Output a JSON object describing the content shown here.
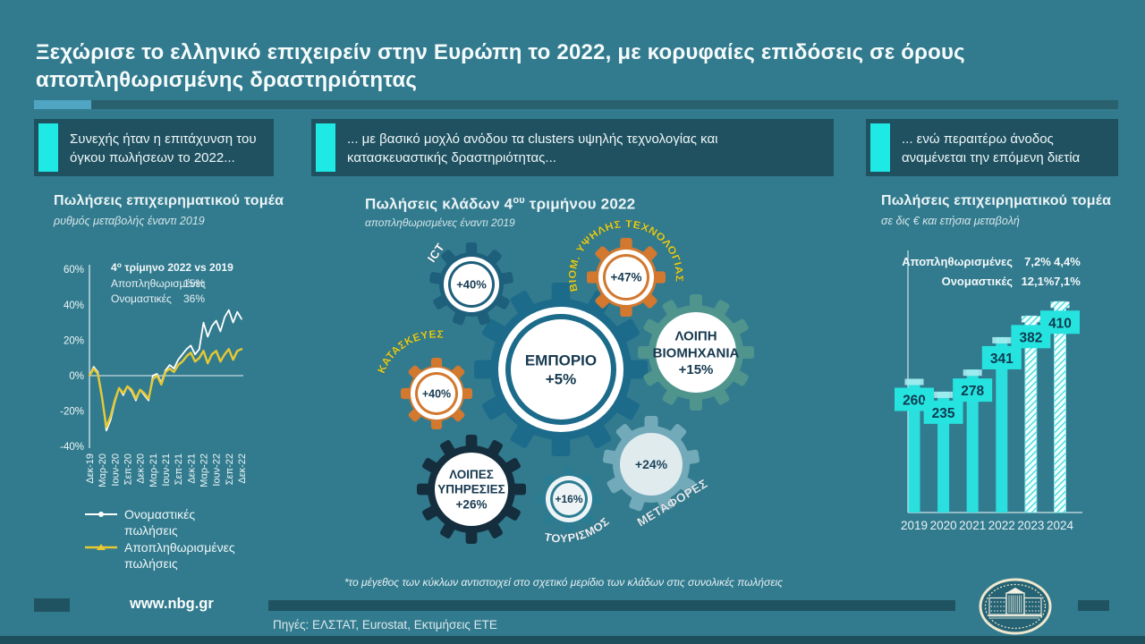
{
  "page": {
    "title": "Ξεχώρισε το ελληνικό επιχειρείν στην Ευρώπη το 2022, με κορυφαίες επιδόσεις σε όρους αποπληθωρισμένης δραστηριότητας",
    "website_link": "www.nbg.gr",
    "sources_line": "Πηγές: ΕΛΣΤΑΤ, Eurostat, Εκτιμήσεις ΕΤΕ",
    "logo_icon": "nbg-building-emblem",
    "background_color": "#327B8E"
  },
  "colors": {
    "accent_cyan": "#1FE9E5",
    "callout_bg": "#1F5160",
    "deco_light_blue": "#4FA5C2",
    "deco_dark": "#29616F",
    "line_nominal": "#FFFFFF",
    "line_deflated": "#E7C832",
    "bar_cyan": "#2BDFDF",
    "bar_label_bg": "#25E4E0",
    "navy_text": "#173A50",
    "gear_orange": "#D2782F",
    "gear_teal_main": "#1C6B8B",
    "gear_teal_dark": "#1E5F7B",
    "gear_sage": "#4F948D",
    "gear_navy": "#152E3E",
    "gear_teal_small": "#2A7D93",
    "gear_light_teal": "#7FB3C2",
    "yellow_label": "#E5CE1E"
  },
  "callouts": [
    {
      "text": "Συνεχής ήταν η επιτάχυνση του όγκου πωλήσεων το 2022..."
    },
    {
      "text": "... με βασικό μοχλό ανόδου τα clusters υψηλής τεχνολογίας και κατασκευαστικής δραστηριότητας..."
    },
    {
      "text": "... ενώ περαιτέρω άνοδος αναμένεται την επόμενη διετία"
    }
  ],
  "left_panel": {
    "title": "Πωλήσεις επιχειρηματικού τομέα",
    "subtitle": "ρυθμός μεταβολής έναντι 2019",
    "legend_items": [
      {
        "label": "Ονομαστικές πωλήσεις",
        "color": "#FFFFFF",
        "marker": "circle-marker-icon"
      },
      {
        "label": "Αποπληθωρισμένες πωλήσεις",
        "color": "#E7C832",
        "marker": "triangle-marker-icon"
      }
    ]
  },
  "center_panel": {
    "title_parts": {
      "prefix": "Πωλήσεις κλάδων 4",
      "sup": "ου",
      "suffix": " τριμήνου 2022"
    },
    "subtitle": "αποπληθωρισμένες έναντι 2019",
    "footnote": "*το μέγεθος των κύκλων αντιστοιχεί στο σχετικό μερίδιο των κλάδων στις συνολικές πωλήσεις"
  },
  "right_panel": {
    "title": "Πωλήσεις επιχειρηματικού τομέα",
    "subtitle": "σε δις € και ετήσια μεταβολή"
  },
  "chart_data": [
    {
      "type": "line",
      "panel": "left",
      "title": "Πωλήσεις επιχειρηματικού τομέα",
      "ylabel": "ρυθμός μεταβολής έναντι 2019 (%)",
      "ylim": [
        -40,
        60
      ],
      "y_ticks": [
        60,
        40,
        20,
        0,
        -20,
        -40
      ],
      "y_tick_labels": [
        "60%",
        "40%",
        "20%",
        "0%",
        "-20%",
        "-40%"
      ],
      "tick_labels": [
        "Δεκ-19",
        "Μαρ-20",
        "Ιουν-20",
        "Σεπ-20",
        "Δεκ-20",
        "Μαρ-21",
        "Ιουν-21",
        "Σεπ-21",
        "Δεκ-21",
        "Μαρ-22",
        "Ιουν-22",
        "Σεπ-22",
        "Δεκ-22"
      ],
      "points_per_tick": 3,
      "annotation": {
        "title_parts": {
          "prefix": "4",
          "sup": "ο",
          "suffix": " τρίμηνο 2022 vs 2019"
        },
        "rows": [
          {
            "label": "Αποπληθωρισμένες",
            "value": "15%"
          },
          {
            "label": "Ονομαστικές",
            "value": "36%"
          }
        ]
      },
      "series": [
        {
          "name": "Ονομαστικές πωλήσεις",
          "color": "#FFFFFF",
          "values": [
            0,
            5,
            2,
            -12,
            -31,
            -25,
            -15,
            -7,
            -11,
            -6,
            -9,
            -14,
            -8,
            -11,
            -14,
            0,
            1,
            -4,
            3,
            6,
            4,
            9,
            12,
            15,
            17,
            12,
            15,
            30,
            22,
            28,
            31,
            25,
            33,
            37,
            30,
            36,
            32
          ]
        },
        {
          "name": "Αποπληθωρισμένες πωλήσεις",
          "color": "#E7C832",
          "values": [
            0,
            4,
            1,
            -13,
            -29,
            -23,
            -14,
            -7,
            -10,
            -6,
            -8,
            -13,
            -8,
            -10,
            -13,
            -2,
            0,
            -5,
            2,
            4,
            2,
            6,
            8,
            11,
            13,
            8,
            10,
            14,
            7,
            12,
            14,
            8,
            12,
            15,
            9,
            14,
            15
          ]
        }
      ],
      "legend_position": "below"
    },
    {
      "type": "gears",
      "panel": "center",
      "note": "*το μέγεθος των κύκλων αντιστοιχεί στο σχετικό μερίδιο των κλάδων στις συνολικές πωλήσεις",
      "gears": [
        {
          "id": "trade",
          "label": "ΕΜΠΟΡΙΟ",
          "value": "+5%",
          "color": "#1C6B8B",
          "label_color": "#173A50"
        },
        {
          "id": "otherind",
          "label": "ΛΟΙΠΗ ΒΙΟΜΗΧΑΝΙΑ",
          "value": "+15%",
          "color": "#4F948D",
          "label_color": "#173A50"
        },
        {
          "id": "ict",
          "label": "ICT",
          "value": "+40%",
          "color": "#1E5F7B",
          "label_color": "#FFFFFF"
        },
        {
          "id": "hightech",
          "label": "ΒΙΟΜ. ΥΨΗΛΗΣ ΤΕΧΝΟΛΟΓΙΑΣ",
          "value": "+47%",
          "color": "#D2782F",
          "label_color": "#E5CE1E"
        },
        {
          "id": "construction",
          "label": "ΚΑΤΑΣΚΕΥΕΣ",
          "value": "+40%",
          "color": "#D2782F",
          "label_color": "#E5CE1E"
        },
        {
          "id": "otherserv",
          "label": "ΛΟΙΠΕΣ ΥΠΗΡΕΣΙΕΣ",
          "value": "+26%",
          "color": "#152E3E",
          "label_color": "#173A50"
        },
        {
          "id": "tourism",
          "label": "ΤΟΥΡΙΣΜΟΣ",
          "value": "+16%",
          "color": "#2A7D93",
          "label_color": "#FFFFFF"
        },
        {
          "id": "transport",
          "label": "ΜΕΤΑΦΟΡΕΣ",
          "value": "+24%",
          "color": "#7FB3C2",
          "label_color": "#FFFFFF"
        }
      ]
    },
    {
      "type": "bar",
      "panel": "right",
      "title": "Πωλήσεις επιχειρηματικού τομέα",
      "ylabel": "δις €",
      "categories": [
        "2019",
        "2020",
        "2021",
        "2022",
        "2023",
        "2024"
      ],
      "values": [
        260,
        235,
        278,
        341,
        382,
        410
      ],
      "forecast": [
        false,
        false,
        false,
        false,
        true,
        true
      ],
      "growth_rows": [
        {
          "label": "Αποπληθωρισμένες",
          "values": [
            "7,2%",
            "4,4%"
          ]
        },
        {
          "label": "Ονομαστικές",
          "values": [
            "12,1%",
            "7,1%"
          ]
        }
      ]
    }
  ]
}
